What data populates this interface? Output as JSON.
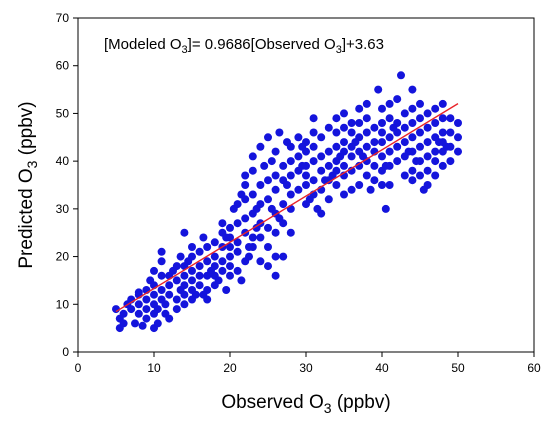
{
  "chart_data": {
    "type": "scatter",
    "title": "",
    "annotation": {
      "prefix": "[Modeled O",
      "sub1": "3",
      "middle": "]= 0.9686[Observed O",
      "sub2": "3",
      "suffix": "]+3.63"
    },
    "xlabel": {
      "text": "Observed O",
      "sub": "3",
      "unit": " (ppbv)"
    },
    "ylabel": {
      "text": "Predicted O",
      "sub": "3",
      "unit": " (ppbv)"
    },
    "xlim": [
      0,
      60
    ],
    "ylim": [
      0,
      70
    ],
    "xticks": [
      0,
      10,
      20,
      30,
      40,
      50,
      60
    ],
    "yticks": [
      0,
      10,
      20,
      30,
      40,
      50,
      60,
      70
    ],
    "grid": false,
    "colors": {
      "points": "#1414dc",
      "fit_line": "#e8232a"
    },
    "fit_line": {
      "slope": 0.9686,
      "intercept": 3.63,
      "x": [
        5,
        50
      ]
    },
    "points": [
      [
        5,
        9
      ],
      [
        5.5,
        5
      ],
      [
        5.5,
        7
      ],
      [
        6,
        6
      ],
      [
        6,
        8
      ],
      [
        6.5,
        10
      ],
      [
        7,
        9
      ],
      [
        7,
        11
      ],
      [
        7.5,
        6
      ],
      [
        8,
        8
      ],
      [
        8,
        10
      ],
      [
        8,
        12
      ],
      [
        8.5,
        5.5
      ],
      [
        9,
        7
      ],
      [
        9,
        9
      ],
      [
        9,
        11
      ],
      [
        9,
        13
      ],
      [
        9.5,
        15
      ],
      [
        10,
        5
      ],
      [
        10,
        8
      ],
      [
        10,
        10
      ],
      [
        10,
        12
      ],
      [
        10,
        14
      ],
      [
        10,
        17
      ],
      [
        10.5,
        6
      ],
      [
        10.5,
        9
      ],
      [
        11,
        11
      ],
      [
        11,
        13
      ],
      [
        11,
        16
      ],
      [
        11,
        19
      ],
      [
        11,
        21
      ],
      [
        11.5,
        8
      ],
      [
        11.5,
        10
      ],
      [
        12,
        12
      ],
      [
        12,
        14
      ],
      [
        12,
        7
      ],
      [
        12,
        16
      ],
      [
        13,
        9
      ],
      [
        13,
        11
      ],
      [
        13,
        15
      ],
      [
        13,
        18
      ],
      [
        13.5,
        20
      ],
      [
        14,
        10
      ],
      [
        14,
        12
      ],
      [
        14,
        14
      ],
      [
        14,
        16
      ],
      [
        14,
        18
      ],
      [
        14,
        25
      ],
      [
        14.5,
        19
      ],
      [
        15,
        11
      ],
      [
        15,
        13
      ],
      [
        15,
        15
      ],
      [
        15,
        17
      ],
      [
        15,
        20
      ],
      [
        15,
        22
      ],
      [
        15.5,
        12
      ],
      [
        16,
        14
      ],
      [
        16,
        16
      ],
      [
        16,
        18
      ],
      [
        16,
        21
      ],
      [
        16.5,
        24
      ],
      [
        17,
        13
      ],
      [
        17,
        16
      ],
      [
        17,
        19
      ],
      [
        17,
        22
      ],
      [
        17,
        11
      ],
      [
        18,
        14
      ],
      [
        18,
        16
      ],
      [
        18,
        18
      ],
      [
        18,
        20
      ],
      [
        18,
        23
      ],
      [
        18.5,
        15
      ],
      [
        19,
        17
      ],
      [
        19,
        19
      ],
      [
        19,
        22
      ],
      [
        19,
        25
      ],
      [
        19,
        27
      ],
      [
        19.5,
        13
      ],
      [
        20,
        16
      ],
      [
        20,
        18
      ],
      [
        20,
        20
      ],
      [
        20,
        22
      ],
      [
        20,
        24
      ],
      [
        20,
        26
      ],
      [
        20.5,
        30
      ],
      [
        21,
        17
      ],
      [
        21,
        21
      ],
      [
        21,
        23
      ],
      [
        21,
        27
      ],
      [
        21,
        31
      ],
      [
        21.5,
        33
      ],
      [
        22,
        19
      ],
      [
        22,
        25
      ],
      [
        22,
        28
      ],
      [
        22,
        32
      ],
      [
        22,
        35
      ],
      [
        22,
        37
      ],
      [
        22.5,
        20
      ],
      [
        23,
        22
      ],
      [
        23,
        24
      ],
      [
        23,
        29
      ],
      [
        23,
        33
      ],
      [
        23,
        38
      ],
      [
        23,
        41
      ],
      [
        23.5,
        30
      ],
      [
        24,
        19
      ],
      [
        24,
        24
      ],
      [
        24,
        27
      ],
      [
        24,
        31
      ],
      [
        24,
        35
      ],
      [
        24,
        43
      ],
      [
        24.5,
        39
      ],
      [
        25,
        18
      ],
      [
        25,
        22
      ],
      [
        25,
        26
      ],
      [
        25,
        32
      ],
      [
        25,
        36
      ],
      [
        25,
        45
      ],
      [
        25.5,
        30
      ],
      [
        26,
        16
      ],
      [
        26,
        20
      ],
      [
        26,
        25
      ],
      [
        26,
        29
      ],
      [
        26,
        34
      ],
      [
        26,
        37
      ],
      [
        26,
        42
      ],
      [
        26.5,
        46
      ],
      [
        27,
        20
      ],
      [
        27,
        27
      ],
      [
        27,
        31
      ],
      [
        27,
        36
      ],
      [
        27,
        39
      ],
      [
        27.5,
        44
      ],
      [
        28,
        25
      ],
      [
        28,
        30
      ],
      [
        28,
        33
      ],
      [
        28,
        37
      ],
      [
        28,
        40
      ],
      [
        28,
        43
      ],
      [
        29,
        34
      ],
      [
        29,
        38
      ],
      [
        29,
        41
      ],
      [
        29,
        45
      ],
      [
        29.5,
        39
      ],
      [
        30,
        31
      ],
      [
        30,
        35
      ],
      [
        30,
        37
      ],
      [
        30,
        39
      ],
      [
        30,
        42
      ],
      [
        30,
        44
      ],
      [
        31,
        33
      ],
      [
        31,
        36
      ],
      [
        31,
        40
      ],
      [
        31,
        43
      ],
      [
        31,
        46
      ],
      [
        31,
        49
      ],
      [
        31.5,
        30
      ],
      [
        32,
        29
      ],
      [
        32,
        34
      ],
      [
        32,
        38
      ],
      [
        32,
        41
      ],
      [
        32,
        45
      ],
      [
        33,
        36
      ],
      [
        33,
        39
      ],
      [
        33,
        42
      ],
      [
        33,
        47
      ],
      [
        33,
        32
      ],
      [
        34,
        35
      ],
      [
        34,
        38
      ],
      [
        34,
        40
      ],
      [
        34,
        43
      ],
      [
        34,
        46
      ],
      [
        34,
        49
      ],
      [
        34.5,
        41
      ],
      [
        35,
        33
      ],
      [
        35,
        37
      ],
      [
        35,
        39
      ],
      [
        35,
        42
      ],
      [
        35,
        44
      ],
      [
        35,
        47
      ],
      [
        35,
        50
      ],
      [
        36,
        34
      ],
      [
        36,
        38
      ],
      [
        36,
        41
      ],
      [
        36,
        43
      ],
      [
        36,
        46
      ],
      [
        36,
        48
      ],
      [
        37,
        35
      ],
      [
        37,
        39
      ],
      [
        37,
        42
      ],
      [
        37,
        45
      ],
      [
        37,
        48
      ],
      [
        37,
        51
      ],
      [
        38,
        37
      ],
      [
        38,
        40
      ],
      [
        38,
        43
      ],
      [
        38,
        46
      ],
      [
        38,
        49
      ],
      [
        38,
        52
      ],
      [
        39,
        36
      ],
      [
        39,
        39
      ],
      [
        39,
        42
      ],
      [
        39,
        44
      ],
      [
        39,
        47
      ],
      [
        39.5,
        55
      ],
      [
        40,
        35
      ],
      [
        40,
        38
      ],
      [
        40,
        41
      ],
      [
        40,
        44
      ],
      [
        40,
        46
      ],
      [
        40,
        48
      ],
      [
        40,
        51
      ],
      [
        40.5,
        30
      ],
      [
        41,
        35
      ],
      [
        41,
        39
      ],
      [
        41,
        42
      ],
      [
        41,
        45
      ],
      [
        41,
        49
      ],
      [
        41,
        52
      ],
      [
        42,
        40
      ],
      [
        42,
        43
      ],
      [
        42,
        46
      ],
      [
        42,
        48
      ],
      [
        42,
        53
      ],
      [
        42.5,
        58
      ],
      [
        43,
        37
      ],
      [
        43,
        41
      ],
      [
        43,
        44
      ],
      [
        43,
        47
      ],
      [
        43,
        50
      ],
      [
        44,
        36
      ],
      [
        44,
        38
      ],
      [
        44,
        42
      ],
      [
        44,
        45
      ],
      [
        44,
        48
      ],
      [
        44,
        51
      ],
      [
        44,
        55
      ],
      [
        45,
        37
      ],
      [
        45,
        40
      ],
      [
        45,
        43
      ],
      [
        45,
        46
      ],
      [
        45,
        49
      ],
      [
        45,
        52
      ],
      [
        46,
        35
      ],
      [
        46,
        38
      ],
      [
        46,
        41
      ],
      [
        46,
        44
      ],
      [
        46,
        47
      ],
      [
        46,
        50
      ],
      [
        47,
        37
      ],
      [
        47,
        40
      ],
      [
        47,
        42
      ],
      [
        47,
        45
      ],
      [
        47,
        48
      ],
      [
        47,
        51
      ],
      [
        48,
        39
      ],
      [
        48,
        42
      ],
      [
        48,
        44
      ],
      [
        48,
        46
      ],
      [
        48,
        49
      ],
      [
        48,
        52
      ],
      [
        49,
        40
      ],
      [
        49,
        43
      ],
      [
        49,
        46
      ],
      [
        49,
        49
      ],
      [
        50,
        42
      ],
      [
        50,
        45
      ],
      [
        50,
        48
      ],
      [
        8,
        12.5
      ],
      [
        12.5,
        17
      ],
      [
        16.5,
        12
      ],
      [
        19.5,
        24
      ],
      [
        21.5,
        15
      ],
      [
        23.5,
        26
      ],
      [
        25.5,
        40
      ],
      [
        27.5,
        35
      ],
      [
        29.5,
        43
      ],
      [
        32.5,
        36
      ],
      [
        36.5,
        44
      ],
      [
        38.5,
        34
      ],
      [
        41.5,
        47
      ],
      [
        43.5,
        42
      ],
      [
        45.5,
        34
      ],
      [
        47.5,
        44
      ],
      [
        13.5,
        13
      ],
      [
        17.5,
        17
      ],
      [
        22.5,
        22
      ],
      [
        26.5,
        28
      ],
      [
        30.5,
        32
      ],
      [
        33.5,
        37
      ],
      [
        37.5,
        41
      ],
      [
        40.5,
        39
      ],
      [
        44.5,
        40
      ],
      [
        48.5,
        43
      ]
    ]
  }
}
